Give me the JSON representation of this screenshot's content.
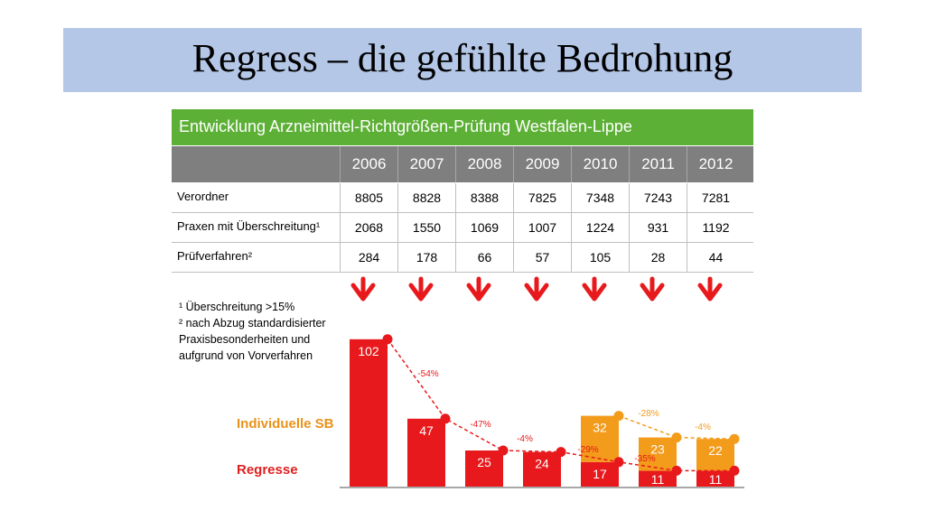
{
  "slide": {
    "title": "Regress – die gefühlte Bedrohung"
  },
  "table": {
    "heading": "Entwicklung Arzneimittel-Richtgrößen-Prüfung  Westfalen-Lippe",
    "years": [
      "2006",
      "2007",
      "2008",
      "2009",
      "2010",
      "2011",
      "2012"
    ],
    "rows": [
      {
        "label": "Verordner",
        "values": [
          "8805",
          "8828",
          "8388",
          "7825",
          "7348",
          "7243",
          "7281"
        ]
      },
      {
        "label": "Praxen mit Überschreitung¹",
        "values": [
          "2068",
          "1550",
          "1069",
          "1007",
          "1224",
          "931",
          "1192"
        ]
      },
      {
        "label": "Prüfverfahren²",
        "values": [
          "284",
          "178",
          "66",
          "57",
          "105",
          "28",
          "44"
        ]
      }
    ]
  },
  "footnotes": {
    "f1": "¹ Überschreitung >15%",
    "f2_line1": "² nach Abzug standardisierter",
    "f2_line2": "Praxisbesonderheiten und",
    "f2_line3": "aufgrund von Vorverfahren"
  },
  "legend": {
    "individuelle_sb": "Individuelle SB",
    "regresse": "Regresse"
  },
  "colors": {
    "regresse": "#e8191c",
    "individuelle_sb": "#f39b1a",
    "green": "#5db036",
    "arrow": "#e8191c"
  },
  "icons": {
    "arrow": "down-arrow-icon"
  },
  "chart_data": {
    "type": "bar",
    "categories": [
      "2006",
      "2007",
      "2008",
      "2009",
      "2010",
      "2011",
      "2012"
    ],
    "series": [
      {
        "name": "Regresse",
        "values": [
          102,
          47,
          25,
          24,
          17,
          11,
          11
        ],
        "trend_labels": [
          "-54%",
          "-47%",
          "-4%",
          "-29%",
          "-35%"
        ]
      },
      {
        "name": "Individuelle SB",
        "values": [
          null,
          null,
          null,
          null,
          32,
          23,
          22
        ],
        "trend_labels": [
          "-28%",
          "-4%"
        ]
      }
    ],
    "ylim": [
      0,
      110
    ]
  }
}
